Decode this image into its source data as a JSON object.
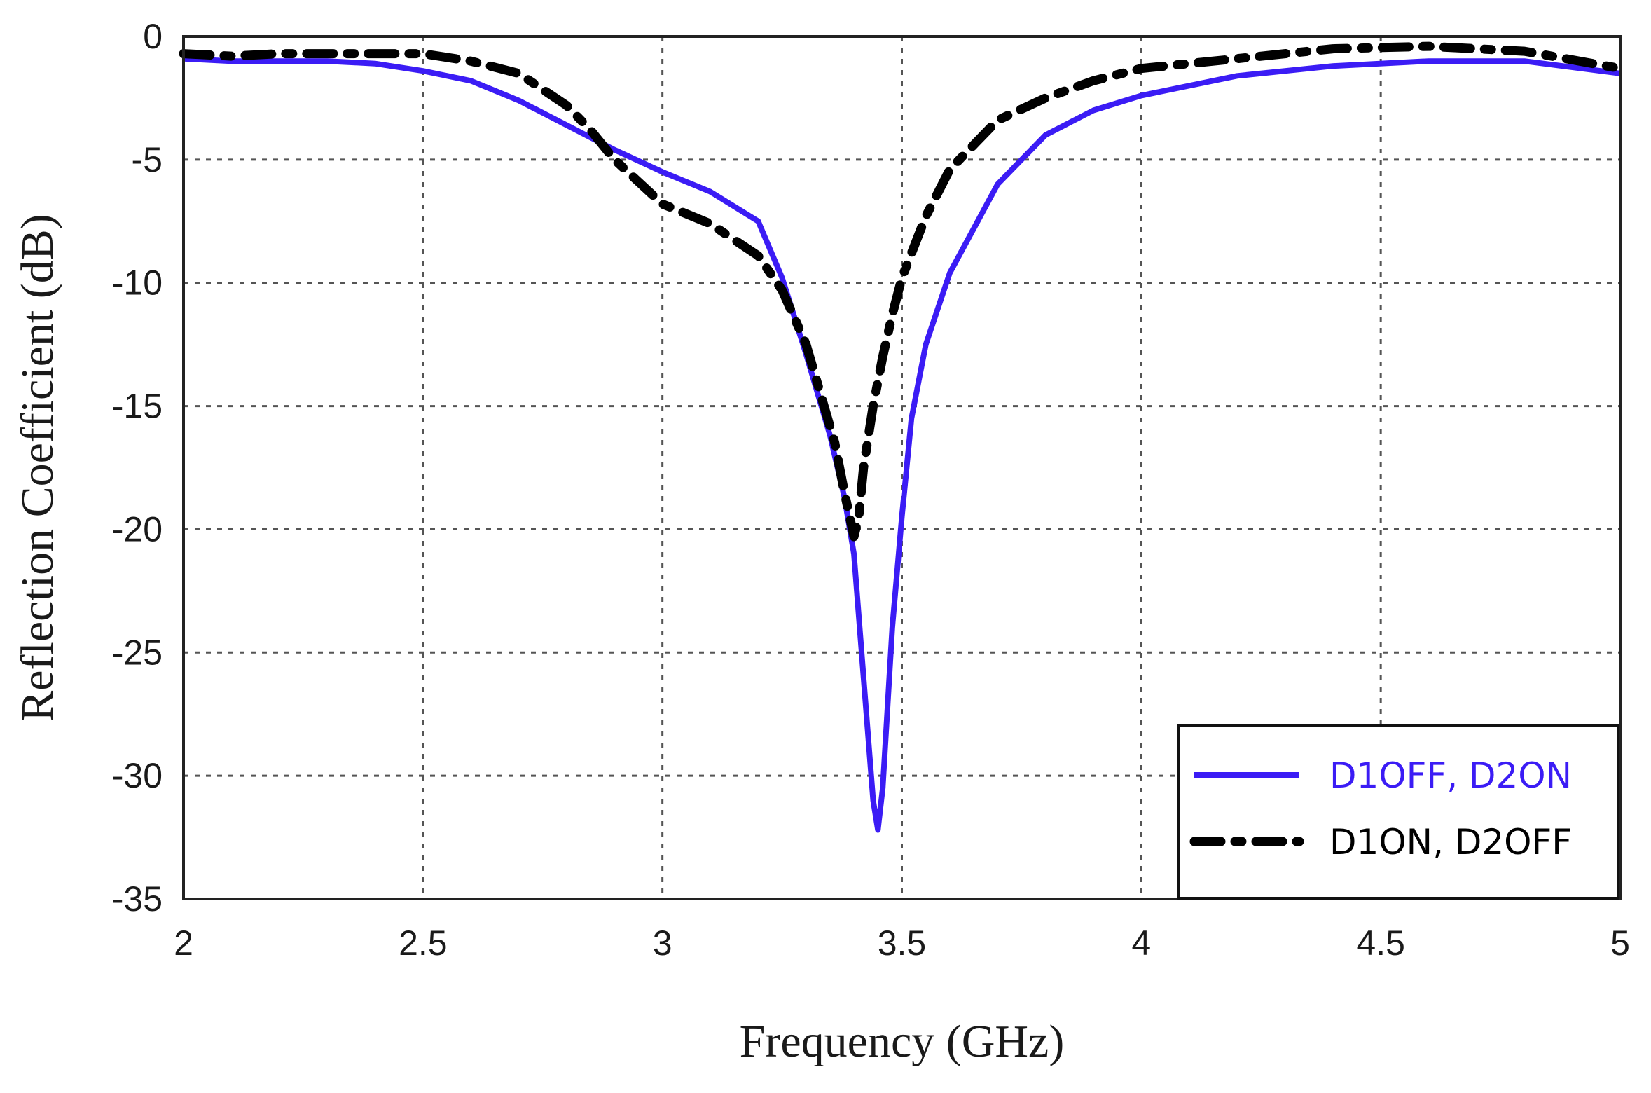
{
  "chart_data": {
    "type": "line",
    "xlabel": "Frequency (GHz)",
    "ylabel": "Reflection Coefficient (dB)",
    "xlim": [
      2,
      5
    ],
    "ylim": [
      -35,
      0
    ],
    "xticks": [
      2,
      2.5,
      3,
      3.5,
      4,
      4.5,
      5
    ],
    "xtick_labels": [
      "2",
      "2.5",
      "3",
      "3.5",
      "4",
      "4.5",
      "5"
    ],
    "yticks": [
      0,
      -5,
      -10,
      -15,
      -20,
      -25,
      -30,
      -35
    ],
    "ytick_labels": [
      "0",
      "-5",
      "-10",
      "-15",
      "-20",
      "-25",
      "-30",
      "-35"
    ],
    "grid": true,
    "legend_position": "bottom-right",
    "series": [
      {
        "name": "D1OFF, D2ON",
        "color": "#3b1cf5",
        "style": "solid",
        "x": [
          2.0,
          2.1,
          2.2,
          2.3,
          2.4,
          2.5,
          2.6,
          2.7,
          2.8,
          2.9,
          3.0,
          3.1,
          3.2,
          3.25,
          3.3,
          3.35,
          3.38,
          3.4,
          3.42,
          3.44,
          3.45,
          3.46,
          3.48,
          3.5,
          3.52,
          3.55,
          3.6,
          3.7,
          3.8,
          3.9,
          4.0,
          4.2,
          4.4,
          4.6,
          4.8,
          5.0
        ],
        "y": [
          -0.9,
          -1.0,
          -1.0,
          -1.0,
          -1.1,
          -1.4,
          -1.8,
          -2.6,
          -3.6,
          -4.6,
          -5.5,
          -6.3,
          -7.5,
          -9.8,
          -12.9,
          -16.2,
          -18.7,
          -21.0,
          -26.0,
          -31.0,
          -32.2,
          -30.5,
          -24.0,
          -19.5,
          -15.5,
          -12.5,
          -9.6,
          -6.0,
          -4.0,
          -3.0,
          -2.4,
          -1.6,
          -1.2,
          -1.0,
          -1.0,
          -1.5
        ]
      },
      {
        "name": "D1ON, D2OFF",
        "color": "#000000",
        "style": "dash-dot",
        "x": [
          2.0,
          2.1,
          2.2,
          2.3,
          2.4,
          2.5,
          2.6,
          2.7,
          2.8,
          2.85,
          2.9,
          3.0,
          3.1,
          3.2,
          3.25,
          3.3,
          3.33,
          3.36,
          3.38,
          3.4,
          3.41,
          3.42,
          3.44,
          3.46,
          3.48,
          3.5,
          3.55,
          3.6,
          3.7,
          3.8,
          3.9,
          4.0,
          4.2,
          4.4,
          4.6,
          4.8,
          5.0
        ],
        "y": [
          -0.7,
          -0.8,
          -0.7,
          -0.7,
          -0.7,
          -0.7,
          -1.0,
          -1.5,
          -2.8,
          -3.8,
          -5.0,
          -6.8,
          -7.6,
          -8.9,
          -10.3,
          -12.5,
          -14.5,
          -16.5,
          -18.5,
          -20.3,
          -19.5,
          -17.5,
          -15.0,
          -13.0,
          -11.3,
          -9.8,
          -7.3,
          -5.4,
          -3.4,
          -2.5,
          -1.8,
          -1.3,
          -0.9,
          -0.5,
          -0.4,
          -0.6,
          -1.3
        ]
      }
    ]
  }
}
